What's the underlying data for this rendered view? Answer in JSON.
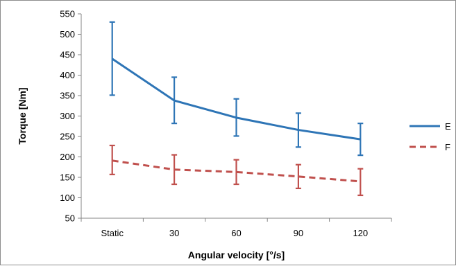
{
  "chart_data": {
    "type": "line",
    "categories": [
      "Static",
      "30",
      "60",
      "90",
      "120"
    ],
    "xlabel": "Angular velocity [°/s]",
    "ylabel": "Torque [Nm]",
    "ylim": [
      50,
      550
    ],
    "yticks": [
      50,
      100,
      150,
      200,
      250,
      300,
      350,
      400,
      450,
      500,
      550
    ],
    "grid": false,
    "legend_position": "right",
    "series": [
      {
        "name": "E",
        "color": "#2E75B6",
        "dashed": false,
        "values": [
          440,
          338,
          296,
          266,
          243
        ],
        "error_low": [
          351,
          282,
          251,
          224,
          204
        ],
        "error_high": [
          530,
          395,
          342,
          307,
          282
        ]
      },
      {
        "name": "F",
        "color": "#C0504D",
        "dashed": true,
        "values": [
          191,
          169,
          163,
          152,
          140
        ],
        "error_low": [
          157,
          133,
          133,
          123,
          106
        ],
        "error_high": [
          228,
          205,
          193,
          181,
          171
        ]
      }
    ]
  }
}
